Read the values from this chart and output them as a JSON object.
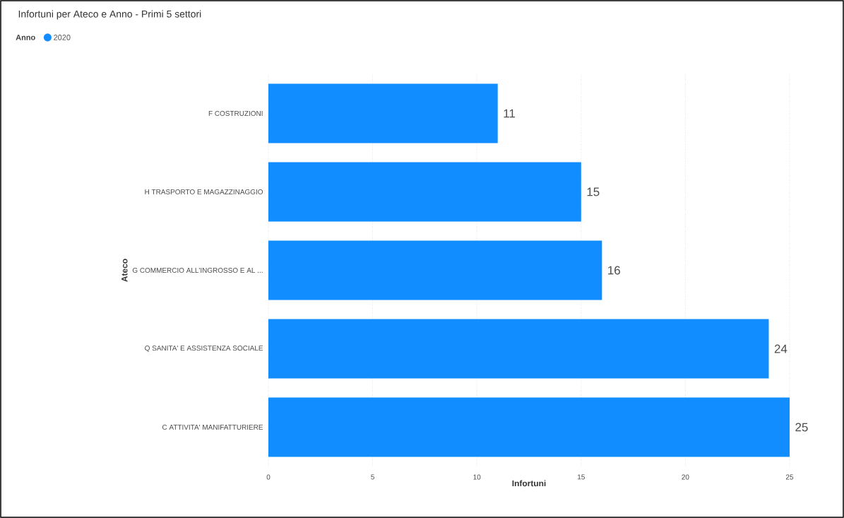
{
  "chart_data": {
    "type": "bar",
    "orientation": "horizontal",
    "title": "Infortuni per Ateco e Anno - Primi 5 settori",
    "xlabel": "Infortuni",
    "ylabel": "Ateco",
    "legend_title": "Anno",
    "legend": "top left",
    "categories": [
      "F COSTRUZIONI",
      "H TRASPORTO E MAGAZZINAGGIO",
      "G COMMERCIO ALL'INGROSSO E AL ...",
      "Q SANITA' E ASSISTENZA SOCIALE",
      "C ATTIVITA' MANIFATTURIERE"
    ],
    "series": [
      {
        "name": "2020",
        "color": "#118dff",
        "values": [
          11,
          15,
          16,
          24,
          25
        ]
      }
    ],
    "xlim": [
      0,
      25
    ],
    "xticks": [
      0,
      5,
      10,
      15,
      20,
      25
    ],
    "grid": "x",
    "data_labels": true
  }
}
